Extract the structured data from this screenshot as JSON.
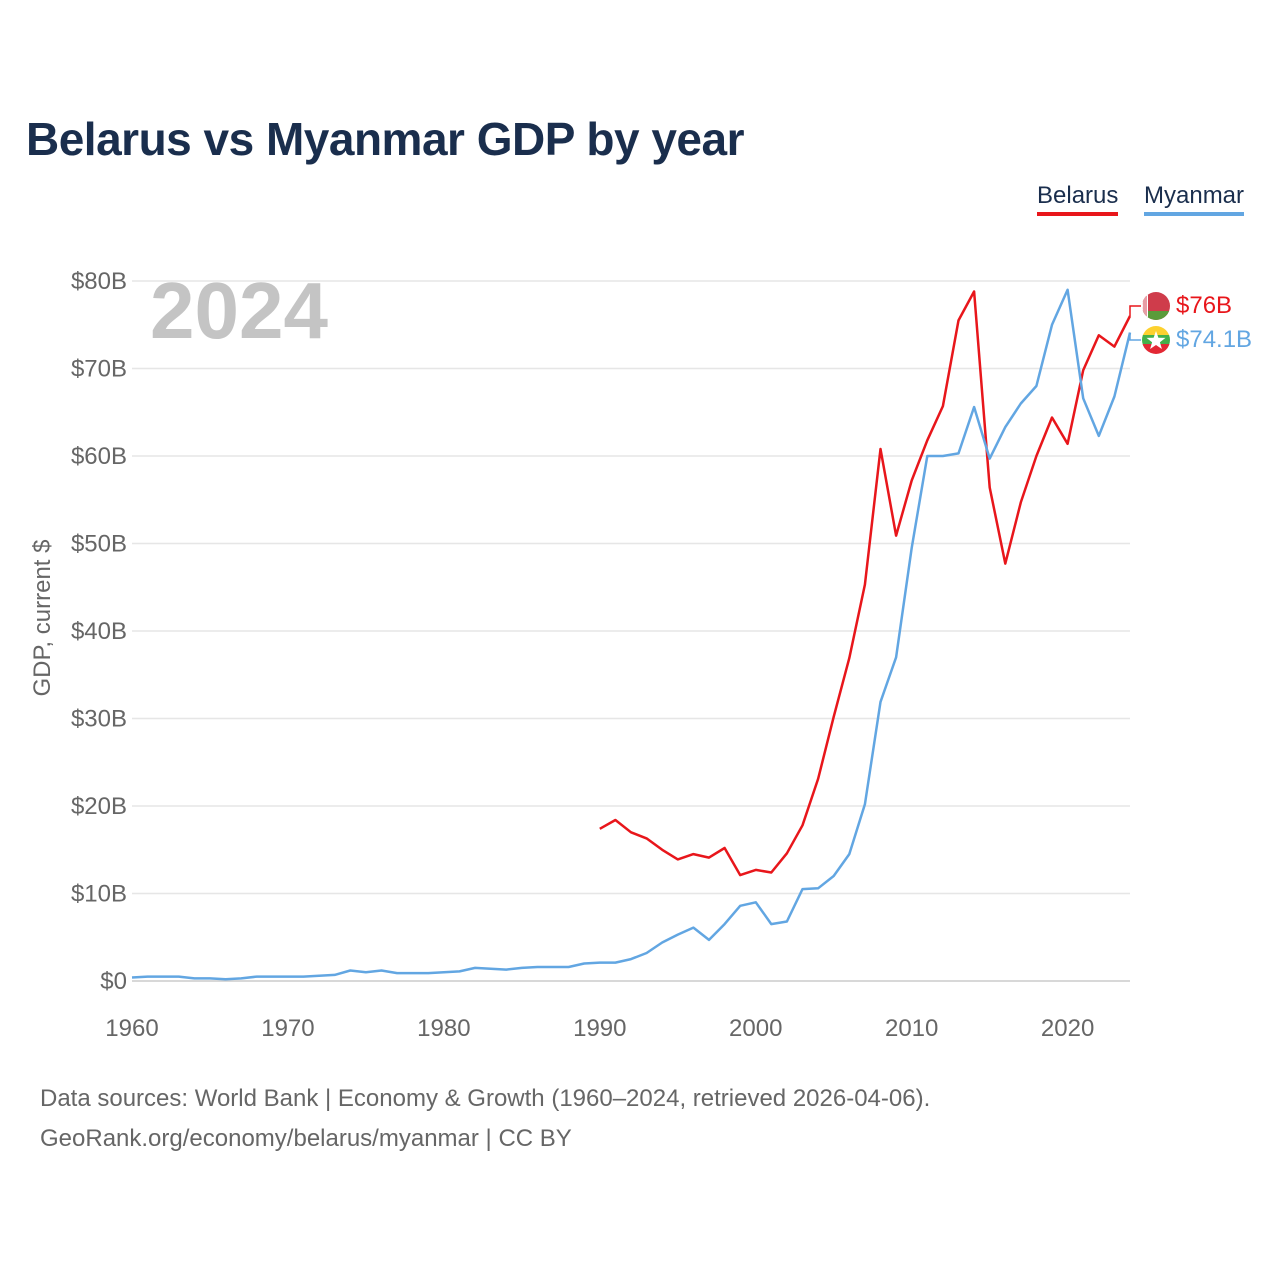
{
  "chart_data": {
    "type": "line",
    "title": "Belarus vs Myanmar GDP by year",
    "year_label": "2024",
    "xlabel": "",
    "ylabel": "GDP, current $",
    "xlim": [
      1960,
      2024
    ],
    "ylim": [
      0,
      80
    ],
    "x_ticks": [
      1960,
      1970,
      1980,
      1990,
      2000,
      2010,
      2020
    ],
    "y_ticks": [
      0,
      10,
      20,
      30,
      40,
      50,
      60,
      70,
      80
    ],
    "y_tick_labels": [
      "$0",
      "$10B",
      "$20B",
      "$30B",
      "$40B",
      "$50B",
      "$60B",
      "$70B",
      "$80B"
    ],
    "legend_position": "top-right",
    "series": [
      {
        "name": "Belarus",
        "color": "#e8161b",
        "end_label": "$76B",
        "flag_icon": "belarus-flag-icon",
        "x": [
          1990,
          1991,
          1992,
          1993,
          1994,
          1995,
          1996,
          1997,
          1998,
          1999,
          2000,
          2001,
          2002,
          2003,
          2004,
          2005,
          2006,
          2007,
          2008,
          2009,
          2010,
          2011,
          2012,
          2013,
          2014,
          2015,
          2016,
          2017,
          2018,
          2019,
          2020,
          2021,
          2022,
          2023,
          2024
        ],
        "values": [
          17.4,
          18.4,
          17.0,
          16.3,
          15.0,
          13.9,
          14.5,
          14.1,
          15.2,
          12.1,
          12.7,
          12.4,
          14.6,
          17.8,
          23.1,
          30.2,
          36.9,
          45.3,
          60.8,
          50.9,
          57.2,
          61.8,
          65.7,
          75.5,
          78.8,
          56.4,
          47.7,
          54.7,
          60.0,
          64.4,
          61.4,
          69.8,
          73.8,
          72.5,
          76.0
        ]
      },
      {
        "name": "Myanmar",
        "color": "#62a6e2",
        "end_label": "$74.1B",
        "flag_icon": "myanmar-flag-icon",
        "x": [
          1960,
          1961,
          1962,
          1963,
          1964,
          1965,
          1966,
          1967,
          1968,
          1969,
          1970,
          1971,
          1972,
          1973,
          1974,
          1975,
          1976,
          1977,
          1978,
          1979,
          1980,
          1981,
          1982,
          1983,
          1984,
          1985,
          1986,
          1987,
          1988,
          1989,
          1990,
          1991,
          1992,
          1993,
          1994,
          1995,
          1996,
          1997,
          1998,
          1999,
          2000,
          2001,
          2002,
          2003,
          2004,
          2005,
          2006,
          2007,
          2008,
          2009,
          2010,
          2011,
          2012,
          2013,
          2014,
          2015,
          2016,
          2017,
          2018,
          2019,
          2020,
          2021,
          2022,
          2023,
          2024
        ],
        "values": [
          0.4,
          0.5,
          0.5,
          0.5,
          0.3,
          0.3,
          0.2,
          0.3,
          0.5,
          0.5,
          0.5,
          0.5,
          0.6,
          0.7,
          1.2,
          1.0,
          1.2,
          0.9,
          0.9,
          0.9,
          1.0,
          1.1,
          1.5,
          1.4,
          1.3,
          1.5,
          1.6,
          1.6,
          1.6,
          2.0,
          2.1,
          2.1,
          2.5,
          3.2,
          4.4,
          5.3,
          6.1,
          4.7,
          6.5,
          8.6,
          9.0,
          6.5,
          6.8,
          10.5,
          10.6,
          12.0,
          14.5,
          20.2,
          31.9,
          37.0,
          49.5,
          60.0,
          60.0,
          60.3,
          65.6,
          59.7,
          63.3,
          66.0,
          68.0,
          75.0,
          79.0,
          66.6,
          62.3,
          66.8,
          74.1
        ]
      }
    ]
  },
  "sources": {
    "line1": "Data sources: World Bank | Economy & Growth (1960–2024, retrieved 2026-04-06).",
    "line2": "GeoRank.org/economy/belarus/myanmar | CC BY"
  }
}
